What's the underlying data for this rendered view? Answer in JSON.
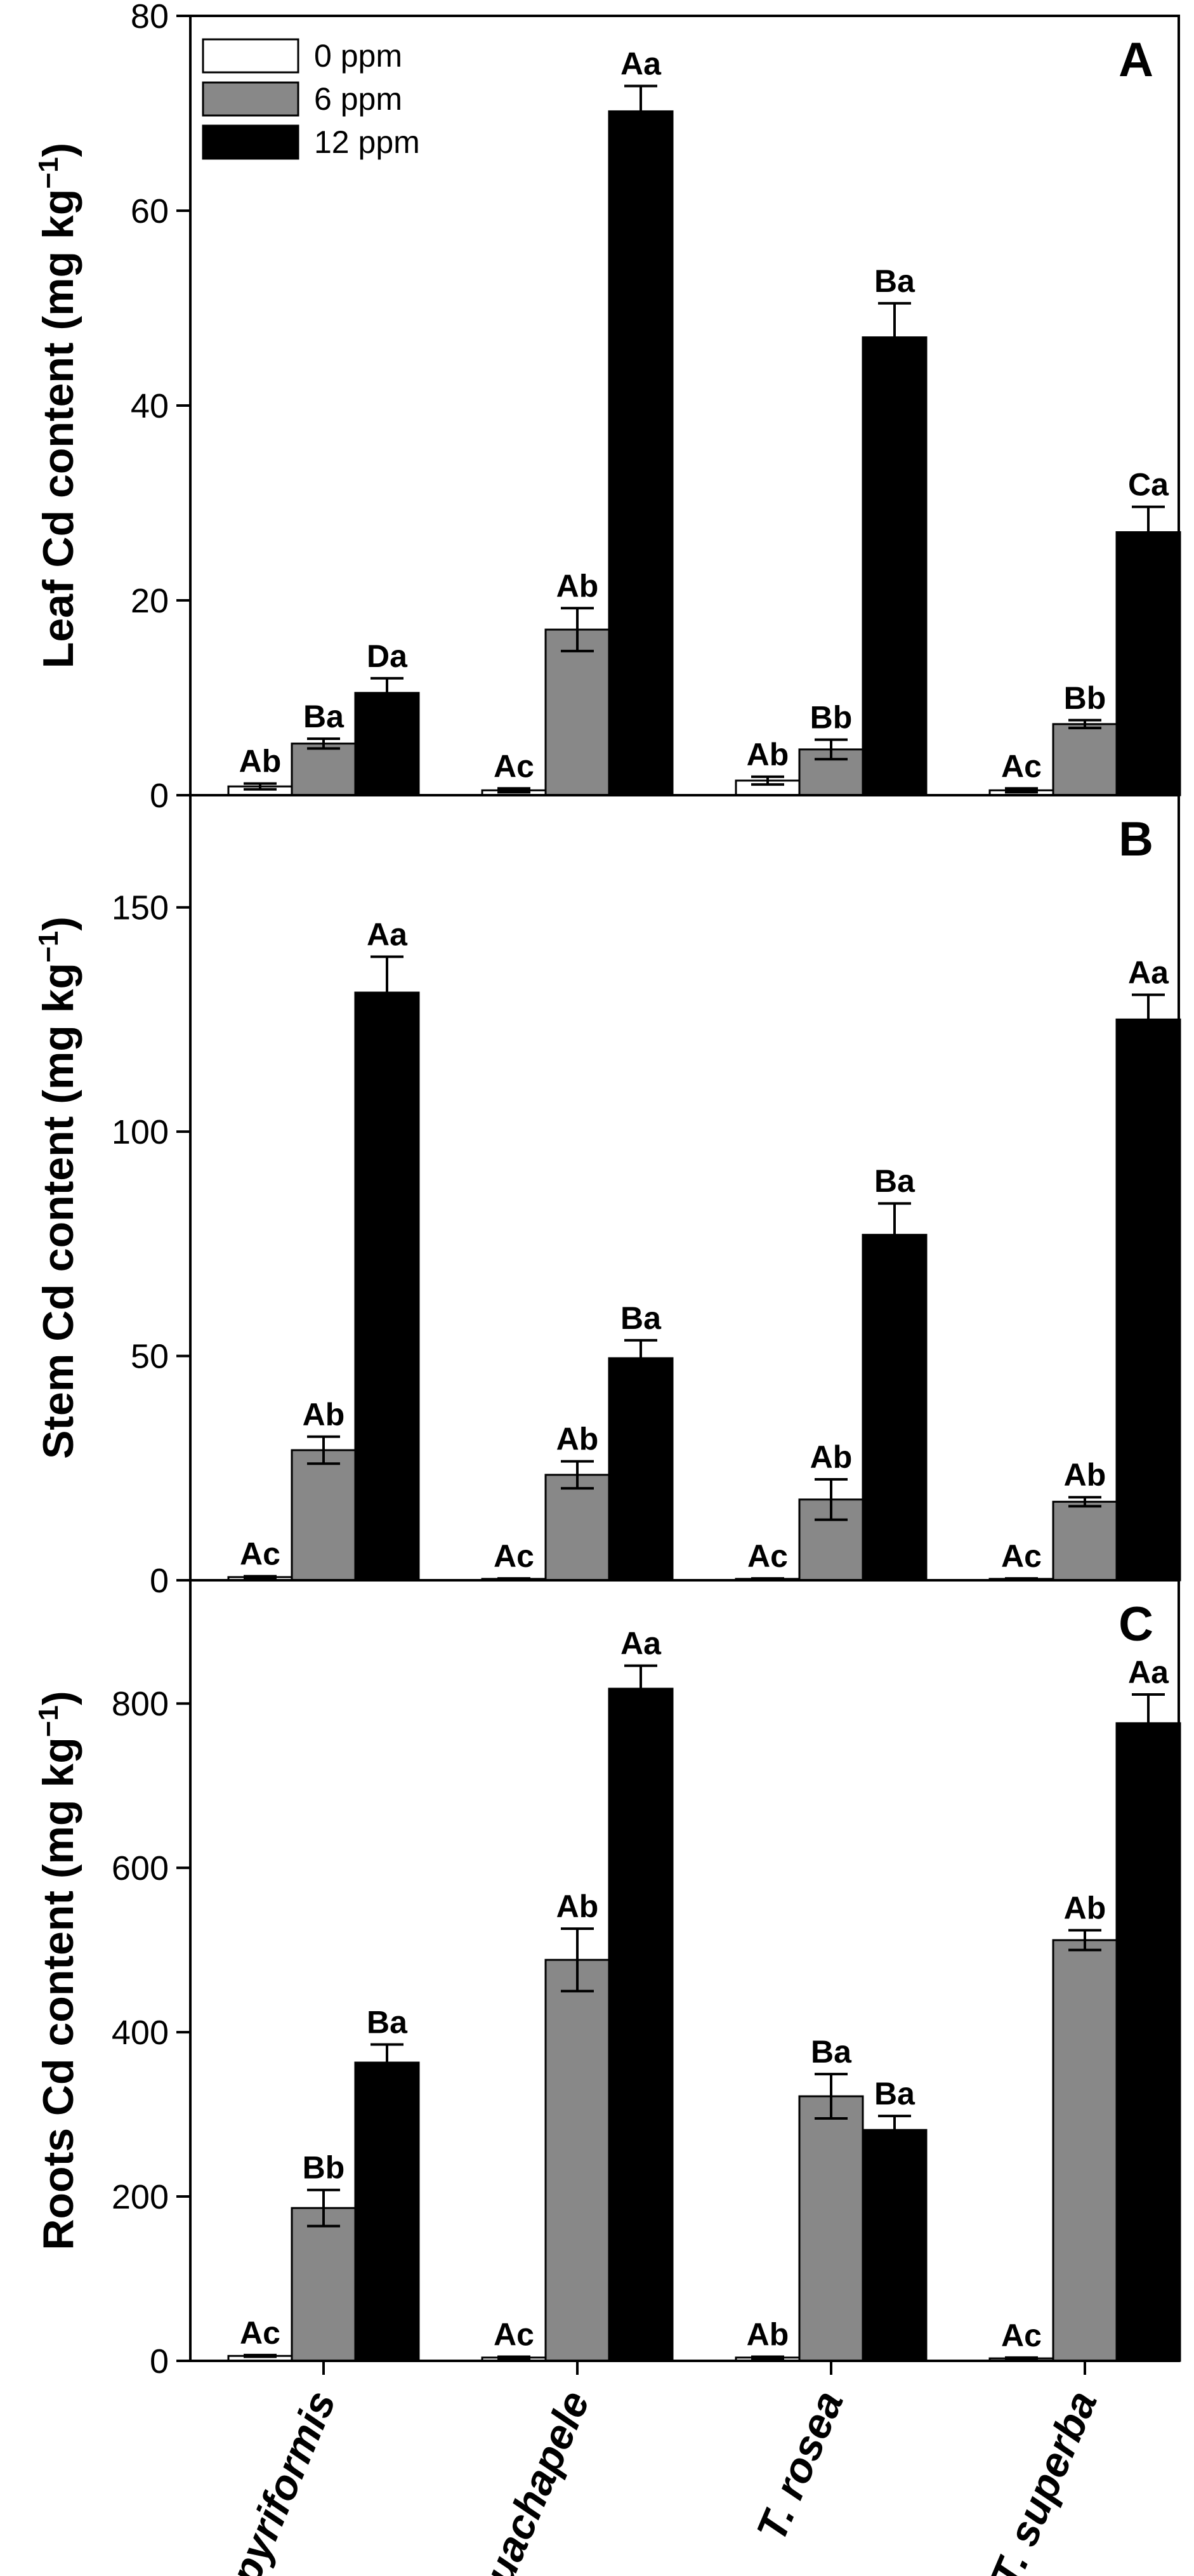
{
  "chart_data": [
    {
      "type": "bar",
      "panel": "A",
      "ylabel": "Leaf Cd content (mg kg⁻¹)",
      "ylim": [
        0,
        80
      ],
      "yticks": [
        0,
        20,
        40,
        60,
        80
      ],
      "categories": [
        "C. pyriformis",
        "A. guachapele",
        "T. rosea",
        "T. superba"
      ],
      "series": [
        {
          "name": "0 ppm",
          "color": "#ffffff",
          "values": [
            0.9,
            0.5,
            1.5,
            0.5
          ],
          "errors": [
            0.3,
            0.2,
            0.4,
            0.2
          ],
          "labels": [
            "Ab",
            "Ac",
            "Ab",
            "Ac"
          ]
        },
        {
          "name": "6 ppm",
          "color": "#888888",
          "values": [
            5.3,
            17.0,
            4.7,
            7.3
          ],
          "errors": [
            0.5,
            2.2,
            1.0,
            0.4
          ],
          "labels": [
            "Ba",
            "Ab",
            "Bb",
            "Bb"
          ]
        },
        {
          "name": "12 ppm",
          "color": "#000000",
          "values": [
            10.5,
            70.2,
            47.0,
            27.0
          ],
          "errors": [
            1.5,
            2.6,
            3.5,
            2.6
          ],
          "labels": [
            "Da",
            "Aa",
            "Ba",
            "Ca"
          ]
        }
      ]
    },
    {
      "type": "bar",
      "panel": "B",
      "ylabel": "Stem Cd content (mg kg⁻¹)",
      "ylim": [
        0,
        175
      ],
      "yticks": [
        0,
        50,
        100,
        150
      ],
      "categories": [
        "C. pyriformis",
        "A. guachapele",
        "T. rosea",
        "T. superba"
      ],
      "series": [
        {
          "name": "0 ppm",
          "color": "#ffffff",
          "values": [
            0.7,
            0.3,
            0.3,
            0.3
          ],
          "errors": [
            0.2,
            0.1,
            0.1,
            0.1
          ],
          "labels": [
            "Ac",
            "Ac",
            "Ac",
            "Ac"
          ]
        },
        {
          "name": "6 ppm",
          "color": "#888888",
          "values": [
            29.0,
            23.5,
            18.0,
            17.5
          ],
          "errors": [
            3.0,
            3.0,
            4.5,
            1.0
          ],
          "labels": [
            "Ab",
            "Ab",
            "Ab",
            "Ab"
          ]
        },
        {
          "name": "12 ppm",
          "color": "#000000",
          "values": [
            131.0,
            49.5,
            77.0,
            125.0
          ],
          "errors": [
            8.0,
            4.0,
            7.0,
            5.5
          ],
          "labels": [
            "Aa",
            "Ba",
            "Ba",
            "Aa"
          ]
        }
      ]
    },
    {
      "type": "bar",
      "panel": "C",
      "ylabel": "Roots Cd content (mg kg⁻¹)",
      "ylim": [
        0,
        950
      ],
      "yticks": [
        0,
        200,
        400,
        600,
        800
      ],
      "categories": [
        "C. pyriformis",
        "A. guachapele",
        "T. rosea",
        "T. superba"
      ],
      "series": [
        {
          "name": "0 ppm",
          "color": "#ffffff",
          "values": [
            6,
            4,
            4,
            3
          ],
          "errors": [
            1,
            1,
            1,
            1
          ],
          "labels": [
            "Ac",
            "Ac",
            "Ab",
            "Ac"
          ]
        },
        {
          "name": "6 ppm",
          "color": "#888888",
          "values": [
            186,
            488,
            322,
            512
          ],
          "errors": [
            22,
            38,
            27,
            12
          ],
          "labels": [
            "Bb",
            "Ab",
            "Ba",
            "Ab"
          ]
        },
        {
          "name": "12 ppm",
          "color": "#000000",
          "values": [
            363,
            818,
            281,
            776
          ],
          "errors": [
            22,
            28,
            17,
            35
          ],
          "labels": [
            "Ba",
            "Aa",
            "Ba",
            "Aa"
          ]
        }
      ]
    }
  ],
  "legend": {
    "items": [
      {
        "name": "0 ppm",
        "color": "#ffffff"
      },
      {
        "name": "6 ppm",
        "color": "#888888"
      },
      {
        "name": "12 ppm",
        "color": "#000000"
      }
    ]
  },
  "xaxis": {
    "labels": [
      "C. pyriformis",
      "A. guachapele",
      "T. rosea",
      "T. superba"
    ]
  }
}
